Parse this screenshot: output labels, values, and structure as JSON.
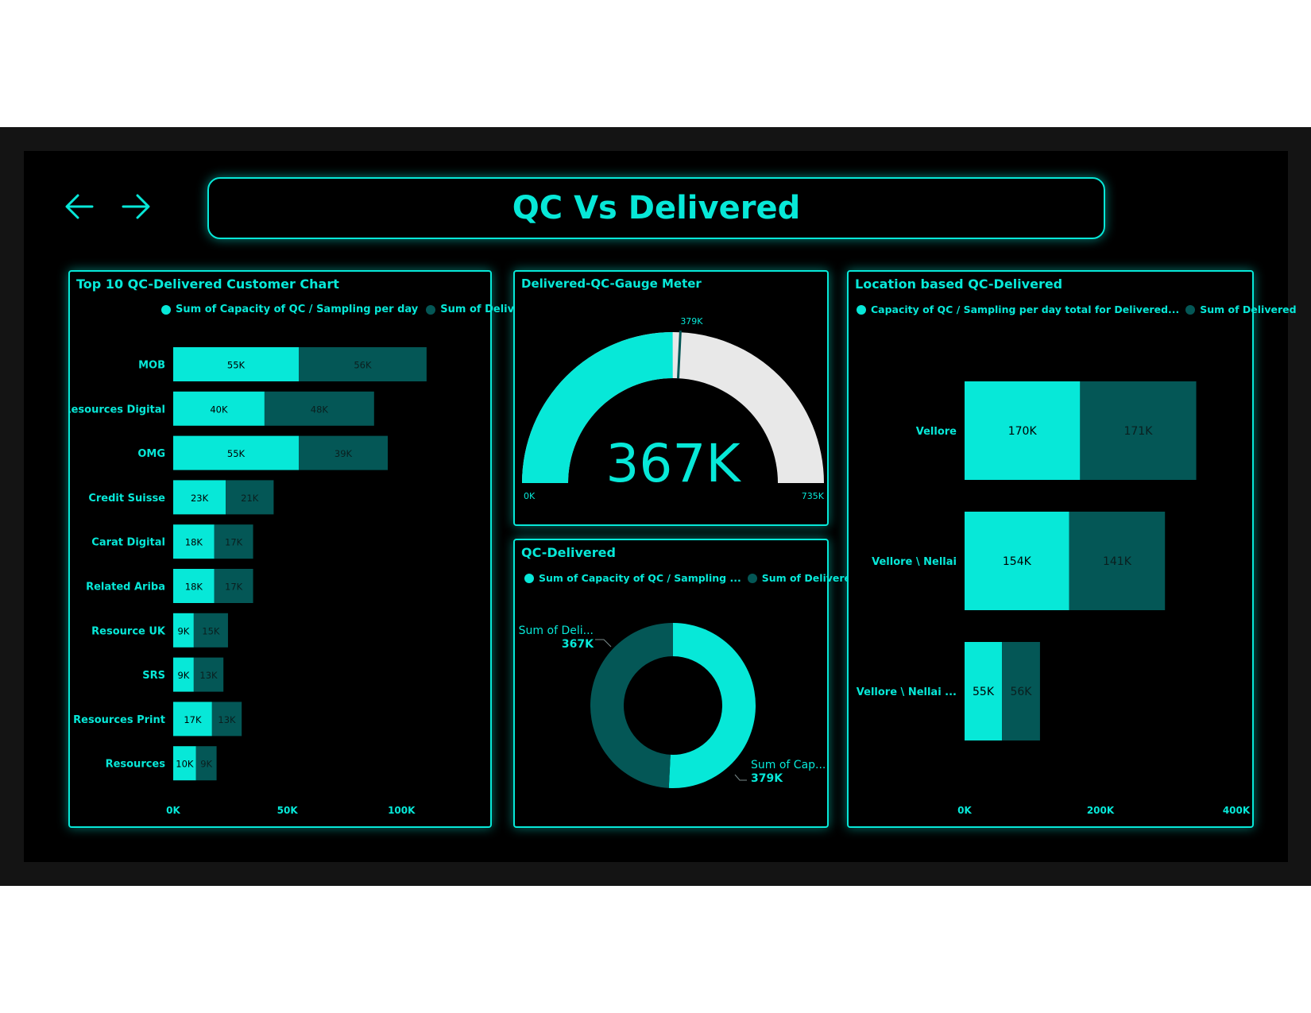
{
  "colors": {
    "accent": "#07E8D8",
    "dark": "#045756",
    "gauge_rest": "#E8E8E8"
  },
  "header": {
    "title": "QC Vs Delivered"
  },
  "nav": {
    "back_icon": "arrow-left-icon",
    "forward_icon": "arrow-right-icon"
  },
  "customer_chart": {
    "title": "Top 10 QC-Delivered Customer Chart",
    "legend": [
      "Sum of Capacity of QC / Sampling per day",
      "Sum of Delivered"
    ],
    "chart_data": {
      "type": "bar",
      "orientation": "horizontal",
      "stacked": true,
      "categories": [
        "MOB",
        "Resources Digital",
        "OMG",
        "Credit Suisse",
        "Carat Digital",
        "Related Ariba",
        "Resource UK",
        "SRS",
        "Resources Print",
        "Resources"
      ],
      "series": [
        {
          "name": "Sum of Capacity of QC / Sampling per day",
          "values": [
            55000,
            40000,
            55000,
            23000,
            18000,
            18000,
            9000,
            9000,
            17000,
            10000
          ],
          "labels": [
            "55K",
            "40K",
            "55K",
            "23K",
            "18K",
            "18K",
            "9K",
            "9K",
            "17K",
            "10K"
          ]
        },
        {
          "name": "Sum of Delivered",
          "values": [
            56000,
            48000,
            39000,
            21000,
            17000,
            17000,
            15000,
            13000,
            13000,
            9000
          ],
          "labels": [
            "56K",
            "48K",
            "39K",
            "21K",
            "17K",
            "17K",
            "15K",
            "13K",
            "13K",
            "9K"
          ]
        }
      ],
      "xlim": [
        0,
        110000
      ],
      "ticks": [
        0,
        50000,
        100000
      ],
      "tick_labels": [
        "0K",
        "50K",
        "100K"
      ],
      "legend_position": "top-right"
    }
  },
  "gauge": {
    "title": "Delivered-QC-Gauge Meter",
    "chart_data": {
      "type": "gauge",
      "value": 367000,
      "value_label": "367K",
      "target": 379000,
      "target_label": "379K",
      "min": 0,
      "min_label": "0K",
      "max": 735000,
      "max_label": "735K"
    }
  },
  "donut": {
    "title": "QC-Delivered",
    "legend": [
      "Sum of Capacity of QC / Sampling ...",
      "Sum of Delivered"
    ],
    "chart_data": {
      "type": "pie",
      "variant": "donut",
      "series": [
        {
          "name": "Sum of Capacity of QC / Sampling per day",
          "value": 379000,
          "label_name": "Sum of Cap...",
          "label_value": "379K"
        },
        {
          "name": "Sum of Delivered",
          "value": 367000,
          "label_name": "Sum of Deli...",
          "label_value": "367K"
        }
      ]
    }
  },
  "location_chart": {
    "title": "Location based QC-Delivered",
    "legend": [
      "Capacity of QC / Sampling per day total for Delivered...",
      "Sum of Delivered"
    ],
    "chart_data": {
      "type": "bar",
      "orientation": "horizontal",
      "stacked": true,
      "categories": [
        "Vellore",
        "Vellore \\ Nellai",
        "Vellore \\ Nellai ..."
      ],
      "series": [
        {
          "name": "Capacity of QC / Sampling per day total for Delivered",
          "values": [
            170000,
            154000,
            55000
          ],
          "labels": [
            "170K",
            "154K",
            "55K"
          ]
        },
        {
          "name": "Sum of Delivered",
          "values": [
            171000,
            141000,
            56000
          ],
          "labels": [
            "171K",
            "141K",
            "56K"
          ]
        }
      ],
      "xlim": [
        0,
        400000
      ],
      "ticks": [
        0,
        200000,
        400000
      ],
      "tick_labels": [
        "0K",
        "200K",
        "400K"
      ],
      "legend_position": "top-right"
    }
  }
}
